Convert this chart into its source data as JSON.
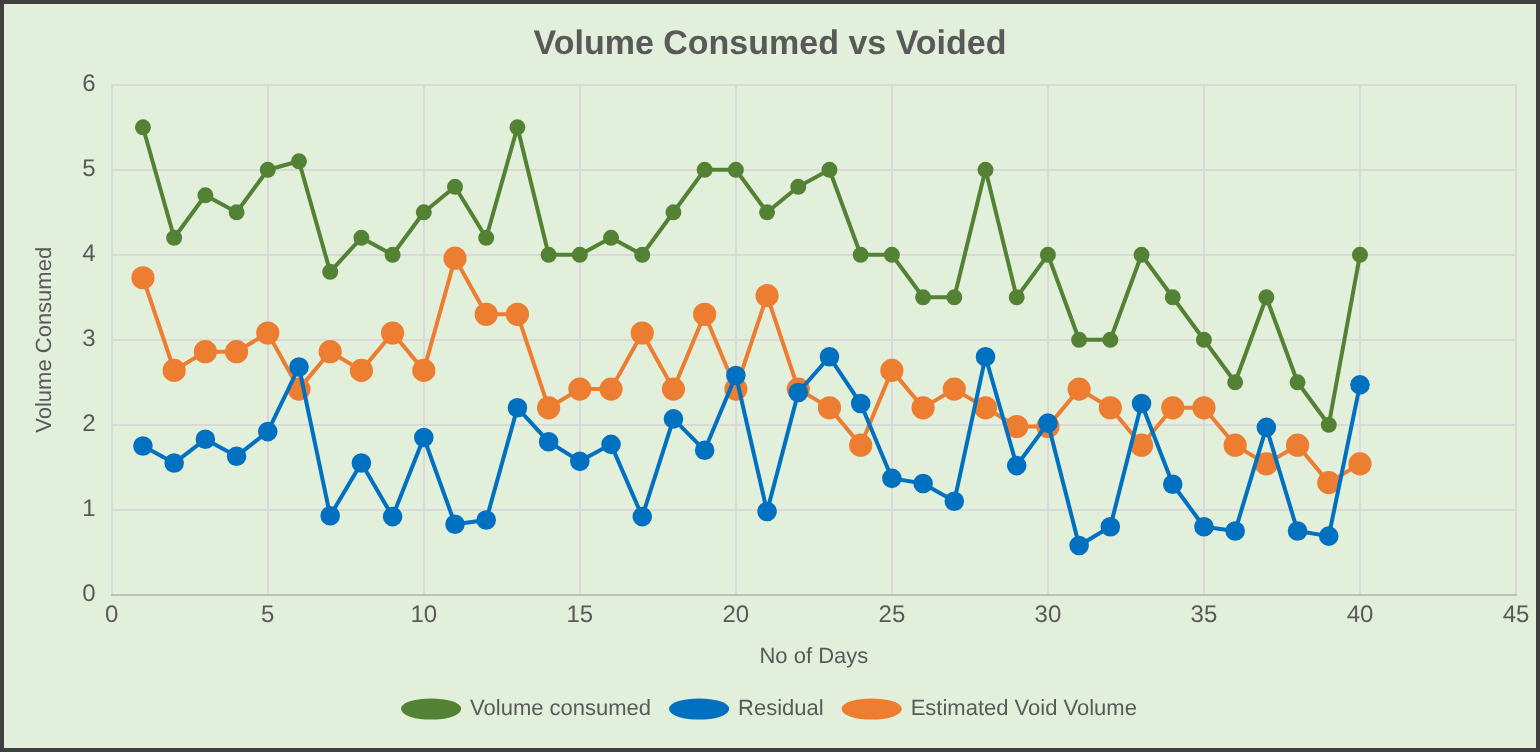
{
  "chart_data": {
    "type": "line",
    "title": "Volume Consumed vs Voided",
    "xlabel": "No of Days",
    "ylabel": "Volume Consumed",
    "x": [
      1,
      2,
      3,
      4,
      5,
      6,
      7,
      8,
      9,
      10,
      11,
      12,
      13,
      14,
      15,
      16,
      17,
      18,
      19,
      20,
      21,
      22,
      23,
      24,
      25,
      26,
      27,
      28,
      29,
      30,
      31,
      32,
      33,
      34,
      35,
      36,
      37,
      38,
      39,
      40
    ],
    "series": [
      {
        "name": "Volume consumed",
        "color": "#548235",
        "values": [
          5.5,
          4.2,
          4.7,
          4.5,
          5,
          5.1,
          3.8,
          4.2,
          4,
          4.5,
          4.8,
          4.2,
          5.5,
          4,
          4,
          4.2,
          4,
          4.5,
          5,
          5,
          4.5,
          4.8,
          5,
          4,
          4,
          3.5,
          3.5,
          5,
          3.5,
          4,
          3,
          3,
          4,
          3.5,
          3,
          2.5,
          3.5,
          2.5,
          2,
          4
        ]
      },
      {
        "name": "Residual",
        "color": "#0070c0",
        "values": [
          1.75,
          1.55,
          1.83,
          1.63,
          1.92,
          2.68,
          0.93,
          1.55,
          0.92,
          1.85,
          0.83,
          0.88,
          2.2,
          1.8,
          1.57,
          1.77,
          0.92,
          2.07,
          1.7,
          2.58,
          0.98,
          2.38,
          2.8,
          2.25,
          1.37,
          1.31,
          1.1,
          2.8,
          1.52,
          2.02,
          0.58,
          0.8,
          2.25,
          1.3,
          0.8,
          0.75,
          1.97,
          0.75,
          0.69,
          2.47
        ]
      },
      {
        "name": "Estimated Void Volume",
        "color": "#ed7d31",
        "values": [
          3.73,
          2.64,
          2.86,
          2.86,
          3.08,
          2.42,
          2.86,
          2.64,
          3.08,
          2.64,
          3.96,
          3.3,
          3.3,
          2.2,
          2.42,
          2.42,
          3.08,
          2.42,
          3.3,
          2.42,
          3.52,
          2.42,
          2.2,
          1.76,
          2.64,
          2.2,
          2.42,
          2.2,
          1.98,
          1.98,
          2.42,
          2.2,
          1.76,
          2.2,
          2.2,
          1.76,
          1.54,
          1.76,
          1.32,
          1.54
        ]
      }
    ],
    "xlim": [
      0,
      45
    ],
    "xticks": [
      0,
      5,
      10,
      15,
      20,
      25,
      30,
      35,
      40,
      45
    ],
    "ylim": [
      0,
      6
    ],
    "yticks": [
      0,
      1,
      2,
      3,
      4,
      5,
      6
    ],
    "grid": true,
    "legend": "bottom",
    "marker": "circle",
    "line_style": "solid"
  }
}
